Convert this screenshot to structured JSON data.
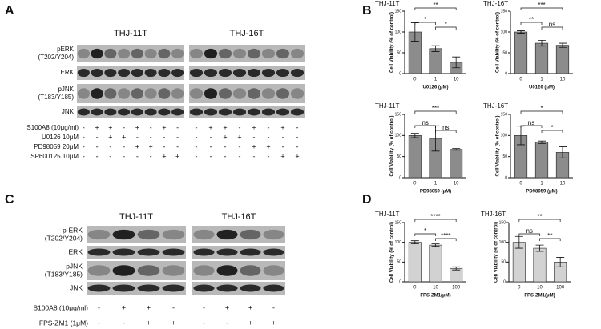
{
  "panels": {
    "A": "A",
    "B": "B",
    "C": "C",
    "D": "D"
  },
  "blots": [
    {
      "cell_lines": [
        "THJ-11T",
        "THJ-16T"
      ],
      "rows": [
        [
          "pERK",
          "(T202/Y204)"
        ],
        [
          "ERK"
        ],
        [
          "pJNK",
          "(T183/Y185)"
        ],
        [
          "JNK"
        ]
      ],
      "treatments": [
        {
          "label": "S100A8 (10μg/ml)",
          "signs": [
            "-",
            "+",
            "+",
            "-",
            "+",
            "-",
            "+",
            "-",
            "-",
            "+",
            "+",
            "-",
            "+",
            "-",
            "+",
            "-"
          ]
        },
        {
          "label": "U0126 10μM",
          "signs": [
            "-",
            "-",
            "+",
            "+",
            "-",
            "-",
            "-",
            "-",
            "-",
            "-",
            "+",
            "+",
            "-",
            "-",
            "-",
            "-"
          ]
        },
        {
          "label": "PD98059 20μM",
          "signs": [
            "-",
            "-",
            "-",
            "-",
            "+",
            "+",
            "-",
            "-",
            "-",
            "-",
            "-",
            "-",
            "+",
            "+",
            "-",
            "-"
          ]
        },
        {
          "label": "SP600125 10μM",
          "signs": [
            "-",
            "-",
            "-",
            "-",
            "-",
            "-",
            "+",
            "+",
            "-",
            "-",
            "-",
            "-",
            "-",
            "-",
            "+",
            "+"
          ]
        }
      ]
    },
    {
      "cell_lines": [
        "THJ-11T",
        "THJ-16T"
      ],
      "rows": [
        [
          "p-ERK",
          "(T202/Y204)"
        ],
        [
          "ERK"
        ],
        [
          "pJNK",
          "(T183/Y185)"
        ],
        [
          "JNK"
        ]
      ],
      "treatments": [
        {
          "label": "S100A8 (10μg/ml)",
          "signs": [
            "-",
            "+",
            "+",
            "-",
            "-",
            "+",
            "+",
            "-"
          ]
        },
        {
          "label": "FPS-ZM1 (1μM)",
          "signs": [
            "-",
            "-",
            "+",
            "+",
            "-",
            "-",
            "+",
            "+"
          ]
        }
      ]
    }
  ],
  "chart_data": [
    {
      "type": "bar",
      "title": "THJ-11T",
      "x_label": "U0126 (μM)",
      "y_label": "Cell Viability (% of control)",
      "categories": [
        "0",
        "1",
        "10"
      ],
      "values": [
        100,
        60,
        27
      ],
      "errors": [
        22,
        7,
        13
      ],
      "color": "#8c8c8c",
      "ylim": [
        0,
        150
      ],
      "yticks": [
        0,
        50,
        100,
        150
      ],
      "comparisons": [
        {
          "from": 0,
          "to": 2,
          "label": "**"
        },
        {
          "from": 0,
          "to": 1,
          "label": "*"
        },
        {
          "from": 1,
          "to": 2,
          "label": "*"
        }
      ]
    },
    {
      "type": "bar",
      "title": "THJ-16T",
      "x_label": "U0126 (μM)",
      "y_label": "Cell Viability (% of control)",
      "categories": [
        "0",
        "1",
        "10"
      ],
      "values": [
        100,
        73,
        68
      ],
      "errors": [
        3,
        7,
        5
      ],
      "color": "#8c8c8c",
      "ylim": [
        0,
        150
      ],
      "yticks": [
        0,
        50,
        100,
        150
      ],
      "comparisons": [
        {
          "from": 0,
          "to": 2,
          "label": "***"
        },
        {
          "from": 0,
          "to": 1,
          "label": "**"
        },
        {
          "from": 1,
          "to": 2,
          "label": "ns"
        }
      ]
    },
    {
      "type": "bar",
      "title": "THJ-11T",
      "x_label": "PD98059 (μM)",
      "y_label": "Cell Viability (% of control)",
      "categories": [
        "0",
        "1",
        "10"
      ],
      "values": [
        100,
        93,
        67
      ],
      "errors": [
        5,
        30,
        2
      ],
      "color": "#8c8c8c",
      "ylim": [
        0,
        150
      ],
      "yticks": [
        0,
        50,
        100,
        150
      ],
      "comparisons": [
        {
          "from": 0,
          "to": 2,
          "label": "***"
        },
        {
          "from": 0,
          "to": 1,
          "label": "ns"
        },
        {
          "from": 1,
          "to": 2,
          "label": "ns"
        }
      ]
    },
    {
      "type": "bar",
      "title": "THJ-16T",
      "x_label": "PD98059 (μM)",
      "y_label": "Cell Viability (% of control)",
      "categories": [
        "0",
        "1",
        "10"
      ],
      "values": [
        100,
        84,
        60
      ],
      "errors": [
        22,
        3,
        13
      ],
      "color": "#8c8c8c",
      "ylim": [
        0,
        150
      ],
      "yticks": [
        0,
        50,
        100,
        150
      ],
      "comparisons": [
        {
          "from": 0,
          "to": 2,
          "label": "*"
        },
        {
          "from": 0,
          "to": 1,
          "label": "ns"
        },
        {
          "from": 1,
          "to": 2,
          "label": "*"
        }
      ]
    },
    {
      "type": "bar",
      "title": "THJ-11T",
      "x_label": "FPS-ZM1(μM)",
      "y_label": "Cell Viability (% of control)",
      "categories": [
        "0",
        "10",
        "100"
      ],
      "values": [
        100,
        93,
        34
      ],
      "errors": [
        4,
        3,
        4
      ],
      "color": "#d2d2d2",
      "ylim": [
        0,
        150
      ],
      "yticks": [
        0,
        50,
        100,
        150
      ],
      "comparisons": [
        {
          "from": 0,
          "to": 2,
          "label": "****"
        },
        {
          "from": 0,
          "to": 1,
          "label": "*"
        },
        {
          "from": 1,
          "to": 2,
          "label": "****"
        }
      ]
    },
    {
      "type": "bar",
      "title": "THJ-16T",
      "x_label": "FPS-ZM1(μM)",
      "y_label": "Cell Viability (% of control)",
      "categories": [
        "0",
        "10",
        "100"
      ],
      "values": [
        100,
        85,
        50
      ],
      "errors": [
        15,
        8,
        12
      ],
      "color": "#d2d2d2",
      "ylim": [
        0,
        150
      ],
      "yticks": [
        0,
        50,
        100,
        150
      ],
      "comparisons": [
        {
          "from": 0,
          "to": 2,
          "label": "**"
        },
        {
          "from": 0,
          "to": 1,
          "label": "ns"
        },
        {
          "from": 1,
          "to": 2,
          "label": "**"
        }
      ]
    }
  ]
}
